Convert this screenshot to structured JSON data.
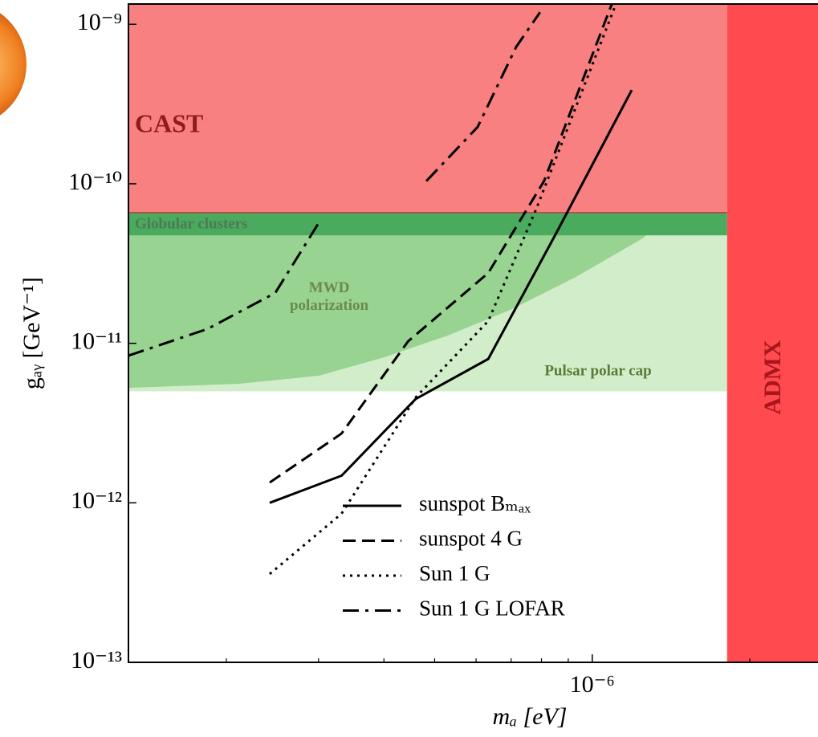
{
  "chart_data": {
    "type": "line",
    "xlabel": "mₐ [eV]",
    "ylabel": "gₐᵧ [GeV⁻¹]",
    "log_x": true,
    "log_y": true,
    "xlim": [
      1.3e-07,
      2.7e-06
    ],
    "ylim": [
      1e-13,
      1.34e-09
    ],
    "xticks": [
      {
        "value": 1e-06,
        "label": "10⁻⁶"
      }
    ],
    "xminor_ticks": [
      2e-07,
      3e-07,
      4e-07,
      5e-07,
      6e-07,
      7e-07,
      8e-07,
      9e-07,
      2e-06
    ],
    "yticks": [
      {
        "value": 1e-13,
        "label": "10⁻¹³"
      },
      {
        "value": 1e-12,
        "label": "10⁻¹²"
      },
      {
        "value": 1e-11,
        "label": "10⁻¹¹"
      },
      {
        "value": 1e-10,
        "label": "10⁻¹⁰"
      },
      {
        "value": 1e-09,
        "label": "10⁻⁹"
      }
    ],
    "regions": [
      {
        "name": "Pulsar polar cap",
        "color": "#d2edc9",
        "x": [
          1.3e-07,
          1.81e-06
        ],
        "y": [
          5e-12,
          4.75e-11
        ]
      },
      {
        "name": "MWD polarization",
        "color": "#98d391",
        "x": [
          1.3e-07,
          2.12e-07,
          3.01e-07,
          4e-07,
          5.3e-07,
          7.03e-07,
          9.3e-07,
          1.24e-06,
          1.27e-06,
          1.3e-07
        ],
        "y": [
          5.26e-12,
          5.58e-12,
          6.27e-12,
          8.17e-12,
          1.12e-11,
          1.64e-11,
          2.6e-11,
          4.49e-11,
          4.75e-11,
          4.75e-11
        ]
      },
      {
        "name": "Globular clusters",
        "color": "#4aaa5e",
        "x": [
          1.3e-07,
          1.81e-06
        ],
        "y": [
          4.75e-11,
          6.6e-11
        ]
      },
      {
        "name": "CAST",
        "color": "#f88080",
        "x": [
          1.3e-07,
          1.81e-06
        ],
        "y": [
          6.6e-11,
          1.34e-09
        ]
      },
      {
        "name": "ADMX",
        "color": "#ff4b50",
        "x": [
          1.81e-06,
          2.7e-06
        ],
        "y": [
          1e-13,
          1.34e-09
        ]
      }
    ],
    "series": [
      {
        "name": "sunspot Bₘₐₓ",
        "color": "#000000",
        "linestyle": "solid",
        "x": [
          2.42e-07,
          3.32e-07,
          4.6e-07,
          6.33e-07,
          8.54e-07,
          1.19e-06
        ],
        "values": [
          1e-12,
          1.48e-12,
          4.48e-12,
          7.98e-12,
          4.92e-11,
          3.87e-10
        ]
      },
      {
        "name": "sunspot 4 G",
        "color": "#000000",
        "linestyle": "dashed",
        "x": [
          2.42e-07,
          3.32e-07,
          4.45e-07,
          6.33e-07,
          8.09e-07,
          1.09e-06
        ],
        "values": [
          1.34e-12,
          2.72e-12,
          1.03e-11,
          2.76e-11,
          1.04e-10,
          1.34e-09
        ]
      },
      {
        "name": "Sun 1 G",
        "color": "#000000",
        "linestyle": "dotted",
        "x": [
          2.42e-07,
          3.32e-07,
          4.6e-07,
          6.33e-07,
          7.82e-07,
          1.11e-06
        ],
        "values": [
          3.58e-13,
          8.55e-13,
          4.58e-12,
          1.38e-11,
          6.97e-11,
          1.34e-09
        ]
      },
      {
        "name": "Sun 1 G LOFAR",
        "color": "#000000",
        "linestyle": "dashdot",
        "x": [
          1.3e-07,
          1.84e-07,
          2.48e-07,
          3e-07,
          null,
          4.82e-07,
          6.04e-07,
          7.16e-07,
          7.95e-07
        ],
        "values": [
          8.37e-12,
          1.23e-11,
          2.07e-11,
          5.66e-11,
          null,
          1.04e-10,
          2.27e-10,
          7.23e-10,
          1.19e-09
        ]
      }
    ]
  }
}
